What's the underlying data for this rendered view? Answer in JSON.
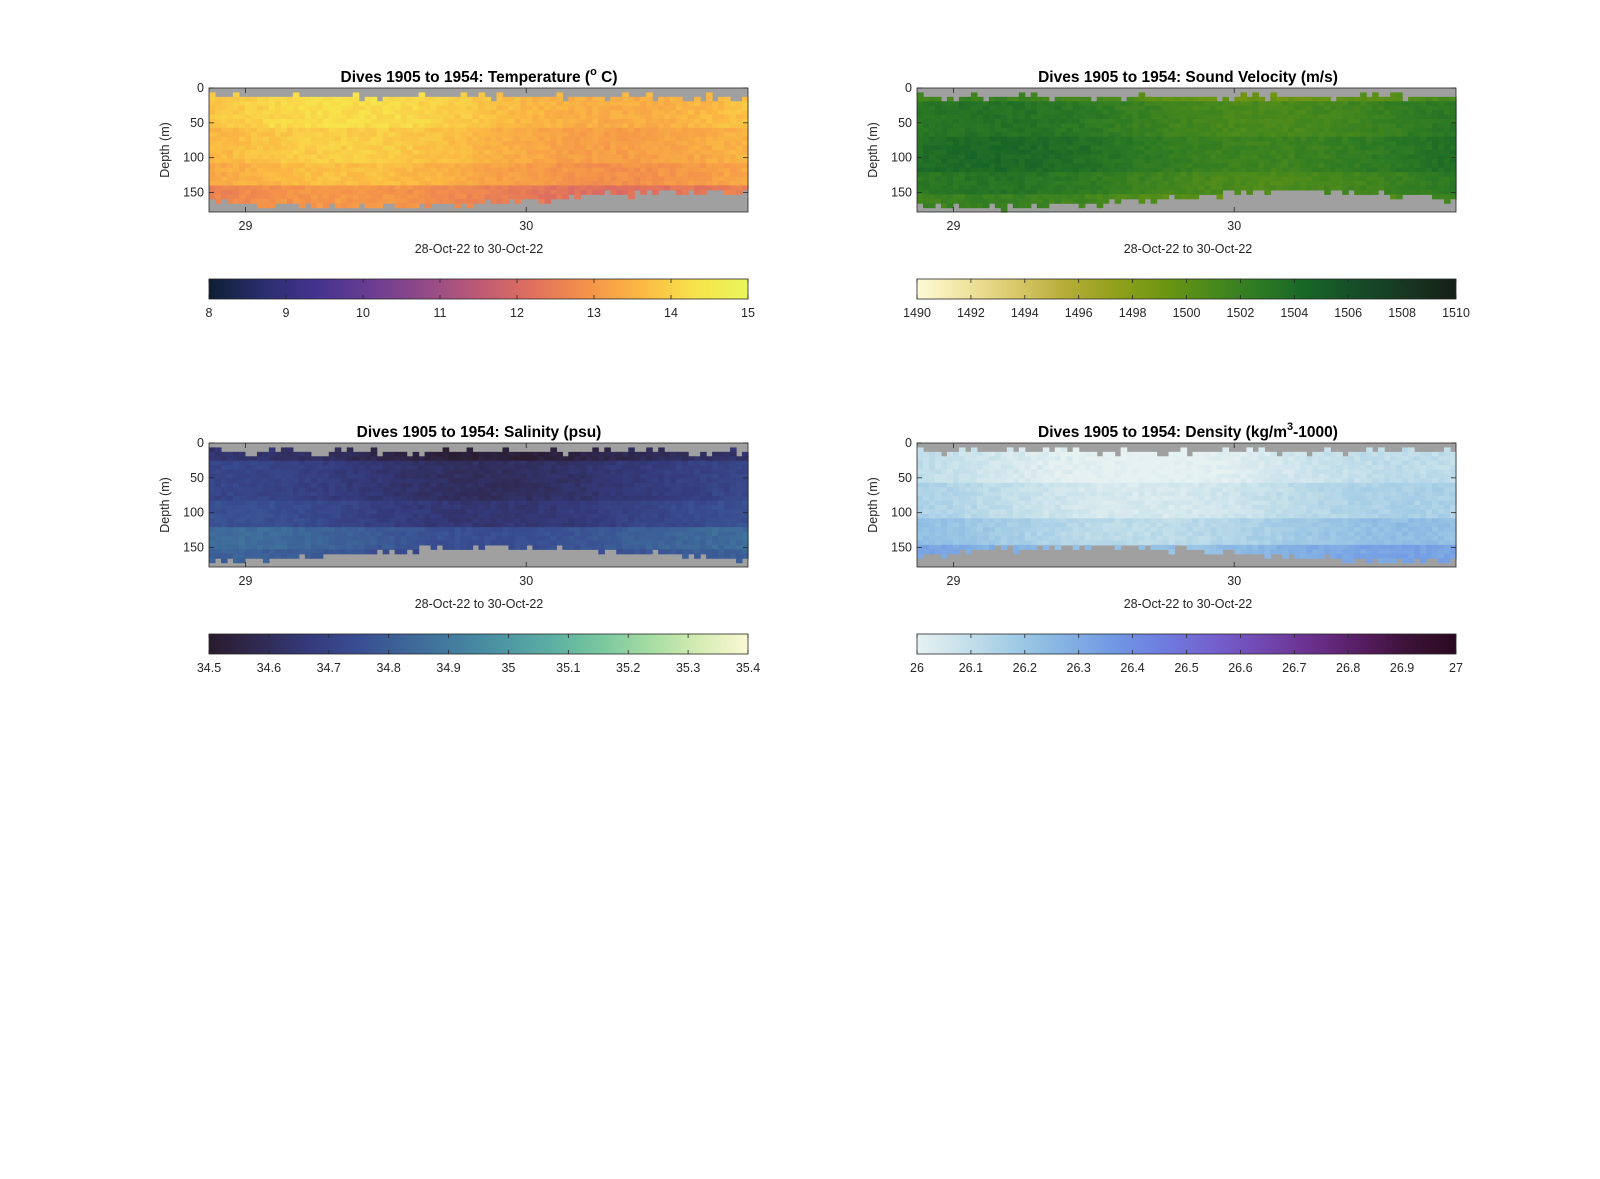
{
  "chart_data": [
    {
      "type": "heatmap",
      "title": "Dives 1905 to 1954: Temperature (",
      "title_sup": "o",
      "title_end": " C)",
      "xlabel": "28-Oct-22 to 30-Oct-22",
      "ylabel": "Depth (m)",
      "x_ticks": [
        29,
        30
      ],
      "x_range": [
        28.87,
        30.79
      ],
      "y_ticks": [
        0,
        50,
        100,
        150
      ],
      "y_range": [
        0,
        178
      ],
      "y_reversed": true,
      "colorbar": {
        "min": 8,
        "max": 15,
        "ticks": [
          "8",
          "9",
          "10",
          "11",
          "12",
          "13",
          "14",
          "15"
        ],
        "colors": [
          "#0d1f33",
          "#2b2e6e",
          "#45338f",
          "#6a3d92",
          "#924a88",
          "#bd5a75",
          "#e0705e",
          "#f4924a",
          "#fbb843",
          "#f8e34b",
          "#e9f65a"
        ]
      },
      "bands": [
        {
          "d0": 0,
          "d1": 15,
          "v": 13.9
        },
        {
          "d0": 15,
          "d1": 60,
          "v": 13.8
        },
        {
          "d0": 60,
          "d1": 110,
          "v": 13.55
        },
        {
          "d0": 110,
          "d1": 140,
          "v": 13.3
        },
        {
          "d0": 140,
          "d1": 178,
          "v": 12.6
        }
      ],
      "nodata_color": "#a0a0a0"
    },
    {
      "type": "heatmap",
      "title": "Dives 1905 to 1954: Sound Velocity (m/s)",
      "xlabel": "28-Oct-22 to 30-Oct-22",
      "ylabel": "Depth (m)",
      "x_ticks": [
        29,
        30
      ],
      "x_range": [
        28.87,
        30.79
      ],
      "y_ticks": [
        0,
        50,
        100,
        150
      ],
      "y_range": [
        0,
        178
      ],
      "y_reversed": true,
      "colorbar": {
        "min": 1490,
        "max": 1510,
        "ticks": [
          "1490",
          "1492",
          "1494",
          "1496",
          "1498",
          "1500",
          "1502",
          "1504",
          "1506",
          "1508",
          "1510"
        ],
        "colors": [
          "#fefbd7",
          "#f0e4a0",
          "#d9c96a",
          "#b7ad3a",
          "#93a11c",
          "#6f9612",
          "#4a8a1c",
          "#2c7a24",
          "#176428",
          "#164c27",
          "#173622",
          "#161f17"
        ]
      },
      "bands": [
        {
          "d0": 0,
          "d1": 20,
          "v": 1500.6
        },
        {
          "d0": 20,
          "d1": 70,
          "v": 1502.2
        },
        {
          "d0": 70,
          "d1": 120,
          "v": 1502.9
        },
        {
          "d0": 120,
          "d1": 150,
          "v": 1502.0
        },
        {
          "d0": 150,
          "d1": 178,
          "v": 1500.8
        }
      ],
      "nodata_color": "#a0a0a0"
    },
    {
      "type": "heatmap",
      "title": "Dives 1905 to 1954: Salinity (psu)",
      "xlabel": "28-Oct-22 to 30-Oct-22",
      "ylabel": "Depth (m)",
      "x_ticks": [
        29,
        30
      ],
      "x_range": [
        28.87,
        30.79
      ],
      "y_ticks": [
        0,
        50,
        100,
        150
      ],
      "y_range": [
        0,
        178
      ],
      "y_reversed": true,
      "colorbar": {
        "min": 34.5,
        "max": 35.4,
        "ticks": [
          "34.5",
          "34.6",
          "34.7",
          "34.8",
          "34.9",
          "35",
          "35.1",
          "35.2",
          "35.3",
          "35.4"
        ],
        "colors": [
          "#2a1b2d",
          "#302a52",
          "#34397a",
          "#394d91",
          "#3d6599",
          "#437d9f",
          "#4c96a3",
          "#5cafa3",
          "#7ac79f",
          "#a5dca3",
          "#d5ecb3",
          "#fcf8d4"
        ]
      },
      "bands": [
        {
          "d0": 0,
          "d1": 25,
          "v": 34.58
        },
        {
          "d0": 25,
          "d1": 80,
          "v": 34.66
        },
        {
          "d0": 80,
          "d1": 120,
          "v": 34.7
        },
        {
          "d0": 120,
          "d1": 150,
          "v": 34.8
        },
        {
          "d0": 150,
          "d1": 178,
          "v": 34.76
        }
      ],
      "nodata_color": "#a0a0a0"
    },
    {
      "type": "heatmap",
      "title": "Dives 1905 to 1954: Density (kg/m",
      "title_sup": "3",
      "title_end": "-1000)",
      "xlabel": "28-Oct-22 to 30-Oct-22",
      "ylabel": "Depth (m)",
      "x_ticks": [
        29,
        30
      ],
      "x_range": [
        28.87,
        30.79
      ],
      "y_ticks": [
        0,
        50,
        100,
        150
      ],
      "y_range": [
        0,
        178
      ],
      "y_reversed": true,
      "colorbar": {
        "min": 26,
        "max": 27,
        "ticks": [
          "26",
          "26.1",
          "26.2",
          "26.3",
          "26.4",
          "26.5",
          "26.6",
          "26.7",
          "26.8",
          "26.9",
          "27"
        ],
        "colors": [
          "#e6f1f2",
          "#c5e0ea",
          "#a1cbe5",
          "#85b3e3",
          "#7199e4",
          "#6e7ddf",
          "#7462cf",
          "#7249b3",
          "#6a318e",
          "#581e65",
          "#3d1238",
          "#290a20"
        ]
      },
      "bands": [
        {
          "d0": 0,
          "d1": 60,
          "v": 26.05
        },
        {
          "d0": 60,
          "d1": 110,
          "v": 26.1
        },
        {
          "d0": 110,
          "d1": 145,
          "v": 26.17
        },
        {
          "d0": 145,
          "d1": 178,
          "v": 26.27
        }
      ],
      "nodata_color": "#a0a0a0"
    }
  ]
}
